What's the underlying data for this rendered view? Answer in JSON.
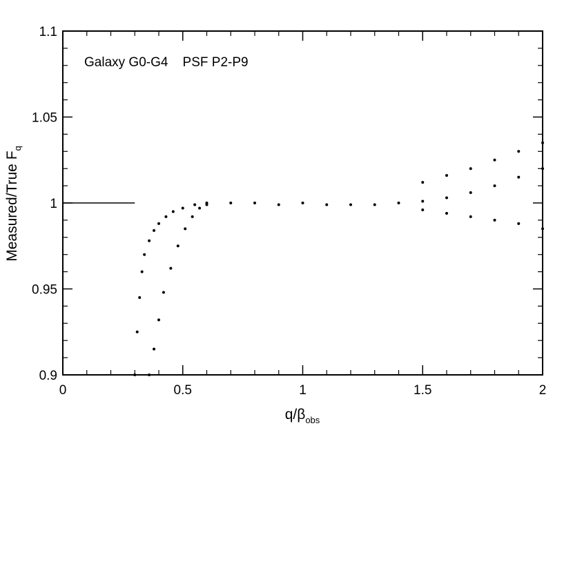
{
  "chart_data": {
    "type": "scatter",
    "annotation": "Galaxy G0-G4    PSF P2-P9",
    "xlabel": {
      "main": "q/β",
      "sub": "obs"
    },
    "ylabel": {
      "main": "Measured/True F",
      "sub": "q"
    },
    "xlim": [
      0,
      2
    ],
    "ylim": [
      0.9,
      1.1
    ],
    "x_ticks": [
      0,
      0.5,
      1,
      1.5,
      2
    ],
    "x_tick_labels": [
      "0",
      "0.5",
      "1",
      "1.5",
      "2"
    ],
    "y_ticks": [
      0.9,
      0.95,
      1,
      1.05,
      1.1
    ],
    "y_tick_labels": [
      "0.9",
      "0.95",
      "1",
      "1.05",
      "1.1"
    ],
    "grid": false,
    "reference_line": {
      "x": [
        0,
        0.3
      ],
      "y": [
        1.0,
        1.0
      ]
    },
    "series": [
      {
        "points": [
          [
            0.3,
            0.9
          ],
          [
            0.31,
            0.925
          ],
          [
            0.32,
            0.945
          ],
          [
            0.33,
            0.96
          ],
          [
            0.34,
            0.97
          ],
          [
            0.36,
            0.978
          ],
          [
            0.38,
            0.984
          ],
          [
            0.4,
            0.988
          ],
          [
            0.43,
            0.992
          ],
          [
            0.46,
            0.995
          ],
          [
            0.5,
            0.997
          ],
          [
            0.55,
            0.999
          ],
          [
            0.6,
            1.0
          ],
          [
            0.36,
            0.9
          ],
          [
            0.38,
            0.915
          ],
          [
            0.4,
            0.932
          ],
          [
            0.42,
            0.948
          ],
          [
            0.45,
            0.962
          ],
          [
            0.48,
            0.975
          ],
          [
            0.51,
            0.985
          ],
          [
            0.54,
            0.992
          ],
          [
            0.57,
            0.997
          ],
          [
            0.6,
            0.999
          ],
          [
            0.7,
            1.0
          ],
          [
            0.8,
            1.0
          ],
          [
            0.9,
            0.999
          ],
          [
            1.0,
            1.0
          ],
          [
            1.1,
            0.999
          ],
          [
            1.2,
            0.999
          ],
          [
            1.3,
            0.999
          ],
          [
            1.4,
            1.0
          ],
          [
            1.5,
            1.001
          ],
          [
            1.6,
            1.003
          ],
          [
            1.7,
            1.006
          ],
          [
            1.8,
            1.01
          ],
          [
            1.9,
            1.015
          ],
          [
            2.0,
            1.02
          ],
          [
            1.5,
            1.012
          ],
          [
            1.6,
            1.016
          ],
          [
            1.7,
            1.02
          ],
          [
            1.8,
            1.025
          ],
          [
            1.9,
            1.03
          ],
          [
            2.0,
            1.035
          ],
          [
            1.5,
            0.996
          ],
          [
            1.6,
            0.994
          ],
          [
            1.7,
            0.992
          ],
          [
            1.8,
            0.99
          ],
          [
            1.9,
            0.988
          ],
          [
            2.0,
            0.985
          ]
        ]
      }
    ]
  }
}
